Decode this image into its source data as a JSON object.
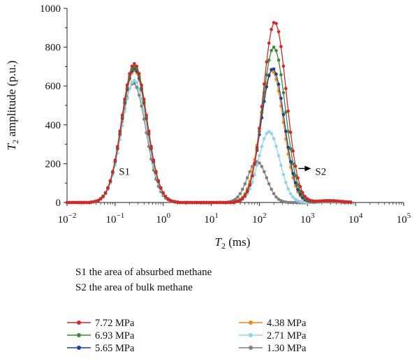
{
  "chart_data": {
    "type": "line",
    "xlabel": {
      "main": "T",
      "sub": "2",
      "rest": " (ms)"
    },
    "ylabel": {
      "main": "T",
      "sub": "2",
      "rest": " amplitude (p.u.)"
    },
    "x_scale": "log",
    "xlim": [
      0.01,
      100000
    ],
    "ylim": [
      0,
      1000
    ],
    "x_ticks": [
      {
        "value": 0.01,
        "base": "10",
        "exp": "−2"
      },
      {
        "value": 0.1,
        "base": "10",
        "exp": "−1"
      },
      {
        "value": 1,
        "base": "10",
        "exp": "0"
      },
      {
        "value": 10,
        "base": "10",
        "exp": "1"
      },
      {
        "value": 100,
        "base": "10",
        "exp": "2"
      },
      {
        "value": 1000,
        "base": "10",
        "exp": "3"
      },
      {
        "value": 10000,
        "base": "10",
        "exp": "4"
      },
      {
        "value": 100000,
        "base": "10",
        "exp": "5"
      }
    ],
    "y_ticks": [
      0,
      200,
      400,
      600,
      800,
      1000
    ],
    "grid": false,
    "annotations": [
      {
        "text": "S1",
        "x": 0.12,
        "y": 160
      },
      {
        "text": "S2",
        "x": 1450,
        "y": 160,
        "arrow_from_x": 650,
        "arrow_y": 175
      }
    ],
    "notes": [
      "S1 the area of absurbed methane",
      "S2 the area of bulk methane"
    ],
    "legend_position": "below",
    "series": [
      {
        "name": "7.72 MPa",
        "color": "#d62728",
        "peak1": {
          "center_log": -0.6,
          "width_log": 0.26,
          "peak": 715
        },
        "peak2": {
          "center_log": 2.32,
          "width_log": 0.24,
          "peak": 930
        },
        "peak3": {
          "center_log": 3.45,
          "width_log": 0.25,
          "peak": 10
        }
      },
      {
        "name": "6.93 MPa",
        "color": "#3a8a3a",
        "peak1": {
          "center_log": -0.6,
          "width_log": 0.26,
          "peak": 700
        },
        "peak2": {
          "center_log": 2.3,
          "width_log": 0.24,
          "peak": 800
        },
        "peak3": {
          "center_log": 3.45,
          "width_log": 0.25,
          "peak": 9
        }
      },
      {
        "name": "5.65 MPa",
        "color": "#1f3f99",
        "peak1": {
          "center_log": -0.6,
          "width_log": 0.26,
          "peak": 690
        },
        "peak2": {
          "center_log": 2.28,
          "width_log": 0.24,
          "peak": 690
        },
        "peak3": {
          "center_log": 3.45,
          "width_log": 0.25,
          "peak": 8
        }
      },
      {
        "name": "4.38 MPa",
        "color": "#ee8a1a",
        "peak1": {
          "center_log": -0.6,
          "width_log": 0.26,
          "peak": 680
        },
        "peak2": {
          "center_log": 2.26,
          "width_log": 0.24,
          "peak": 680
        },
        "peak3": {
          "center_log": 3.45,
          "width_log": 0.25,
          "peak": 7
        }
      },
      {
        "name": "2.71 MPa",
        "color": "#8fd3ea",
        "peak1": {
          "center_log": -0.6,
          "width_log": 0.26,
          "peak": 630
        },
        "peak2": {
          "center_log": 2.2,
          "width_log": 0.22,
          "peak": 365
        },
        "peak3": {
          "center_log": 3.45,
          "width_log": 0.25,
          "peak": 5
        }
      },
      {
        "name": "1.30 MPa",
        "color": "#7f7f7f",
        "peak1": {
          "center_log": -0.62,
          "width_log": 0.26,
          "peak": 615
        },
        "peak2": {
          "center_log": 1.95,
          "width_log": 0.2,
          "peak": 210
        },
        "peak3": {
          "center_log": 3.45,
          "width_log": 0.25,
          "peak": 3
        }
      }
    ]
  }
}
